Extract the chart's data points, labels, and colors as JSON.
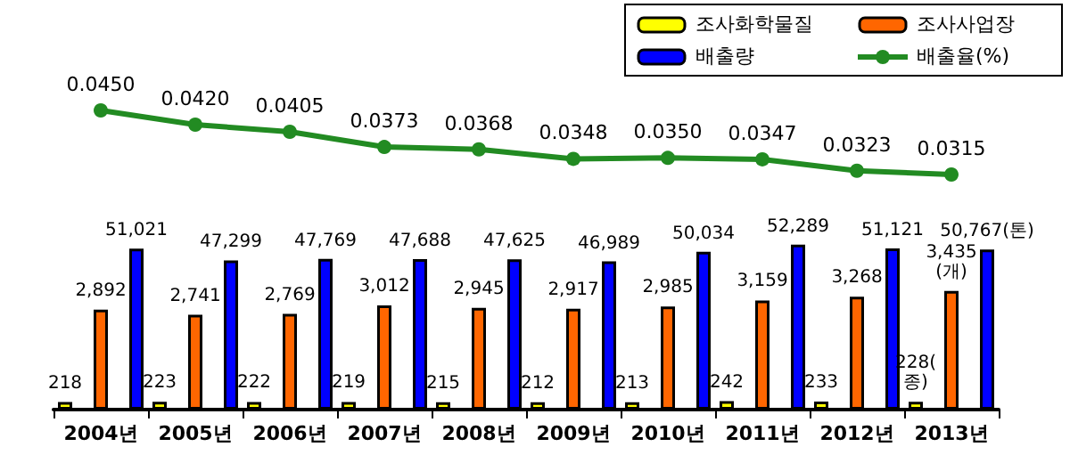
{
  "chart_data": [
    {
      "type": "line",
      "categories": [
        null,
        null,
        null,
        null,
        null,
        null,
        null,
        null,
        null,
        null
      ],
      "tick_labels": false,
      "legend": "top right",
      "marker": "circle",
      "series": [
        {
          "name": "배출율(%)",
          "color": "#228b22",
          "values": [
            0.045,
            0.042,
            0.0405,
            0.0373,
            0.0368,
            0.0348,
            0.035,
            0.0347,
            0.0323,
            0.0315
          ],
          "value_labels": [
            "0.0450",
            "0.0420",
            "0.0405",
            "0.0373",
            "0.0368",
            "0.0348",
            "0.0350",
            "0.0347",
            "0.0323",
            "0.0315"
          ]
        }
      ]
    },
    {
      "type": "bar",
      "categories": [
        "2004년",
        "2005년",
        "2006년",
        "2007년",
        "2008년",
        "2009년",
        "2010년",
        "2011년",
        "2012년",
        "2013년"
      ],
      "legend": "top right",
      "series": [
        {
          "name": "조사화학물질",
          "color": "#ffff00",
          "values": [
            218,
            223,
            222,
            219,
            215,
            212,
            213,
            242,
            233,
            228
          ],
          "value_labels": [
            "218",
            "223",
            "222",
            "219",
            "215",
            "212",
            "213",
            "242",
            "233",
            "228(종)"
          ]
        },
        {
          "name": "조사사업장",
          "color": "#ff6600",
          "values": [
            2892,
            2741,
            2769,
            3012,
            2945,
            2917,
            2985,
            3159,
            3268,
            3435
          ],
          "value_labels": [
            "2,892",
            "2,741",
            "2,769",
            "3,012",
            "2,945",
            "2,917",
            "2,985",
            "3,159",
            "3,268",
            "3,435(개)"
          ]
        },
        {
          "name": "배출량",
          "color": "#0000ff",
          "axis": "y2",
          "values": [
            51021,
            47299,
            47769,
            47688,
            47625,
            46989,
            50034,
            52289,
            51121,
            50767
          ],
          "value_labels": [
            "51,021",
            "47,299",
            "47,769",
            "47,688",
            "47,625",
            "46,989",
            "50,034",
            "52,289",
            "51,121",
            "50,767(톤)"
          ]
        }
      ]
    }
  ]
}
